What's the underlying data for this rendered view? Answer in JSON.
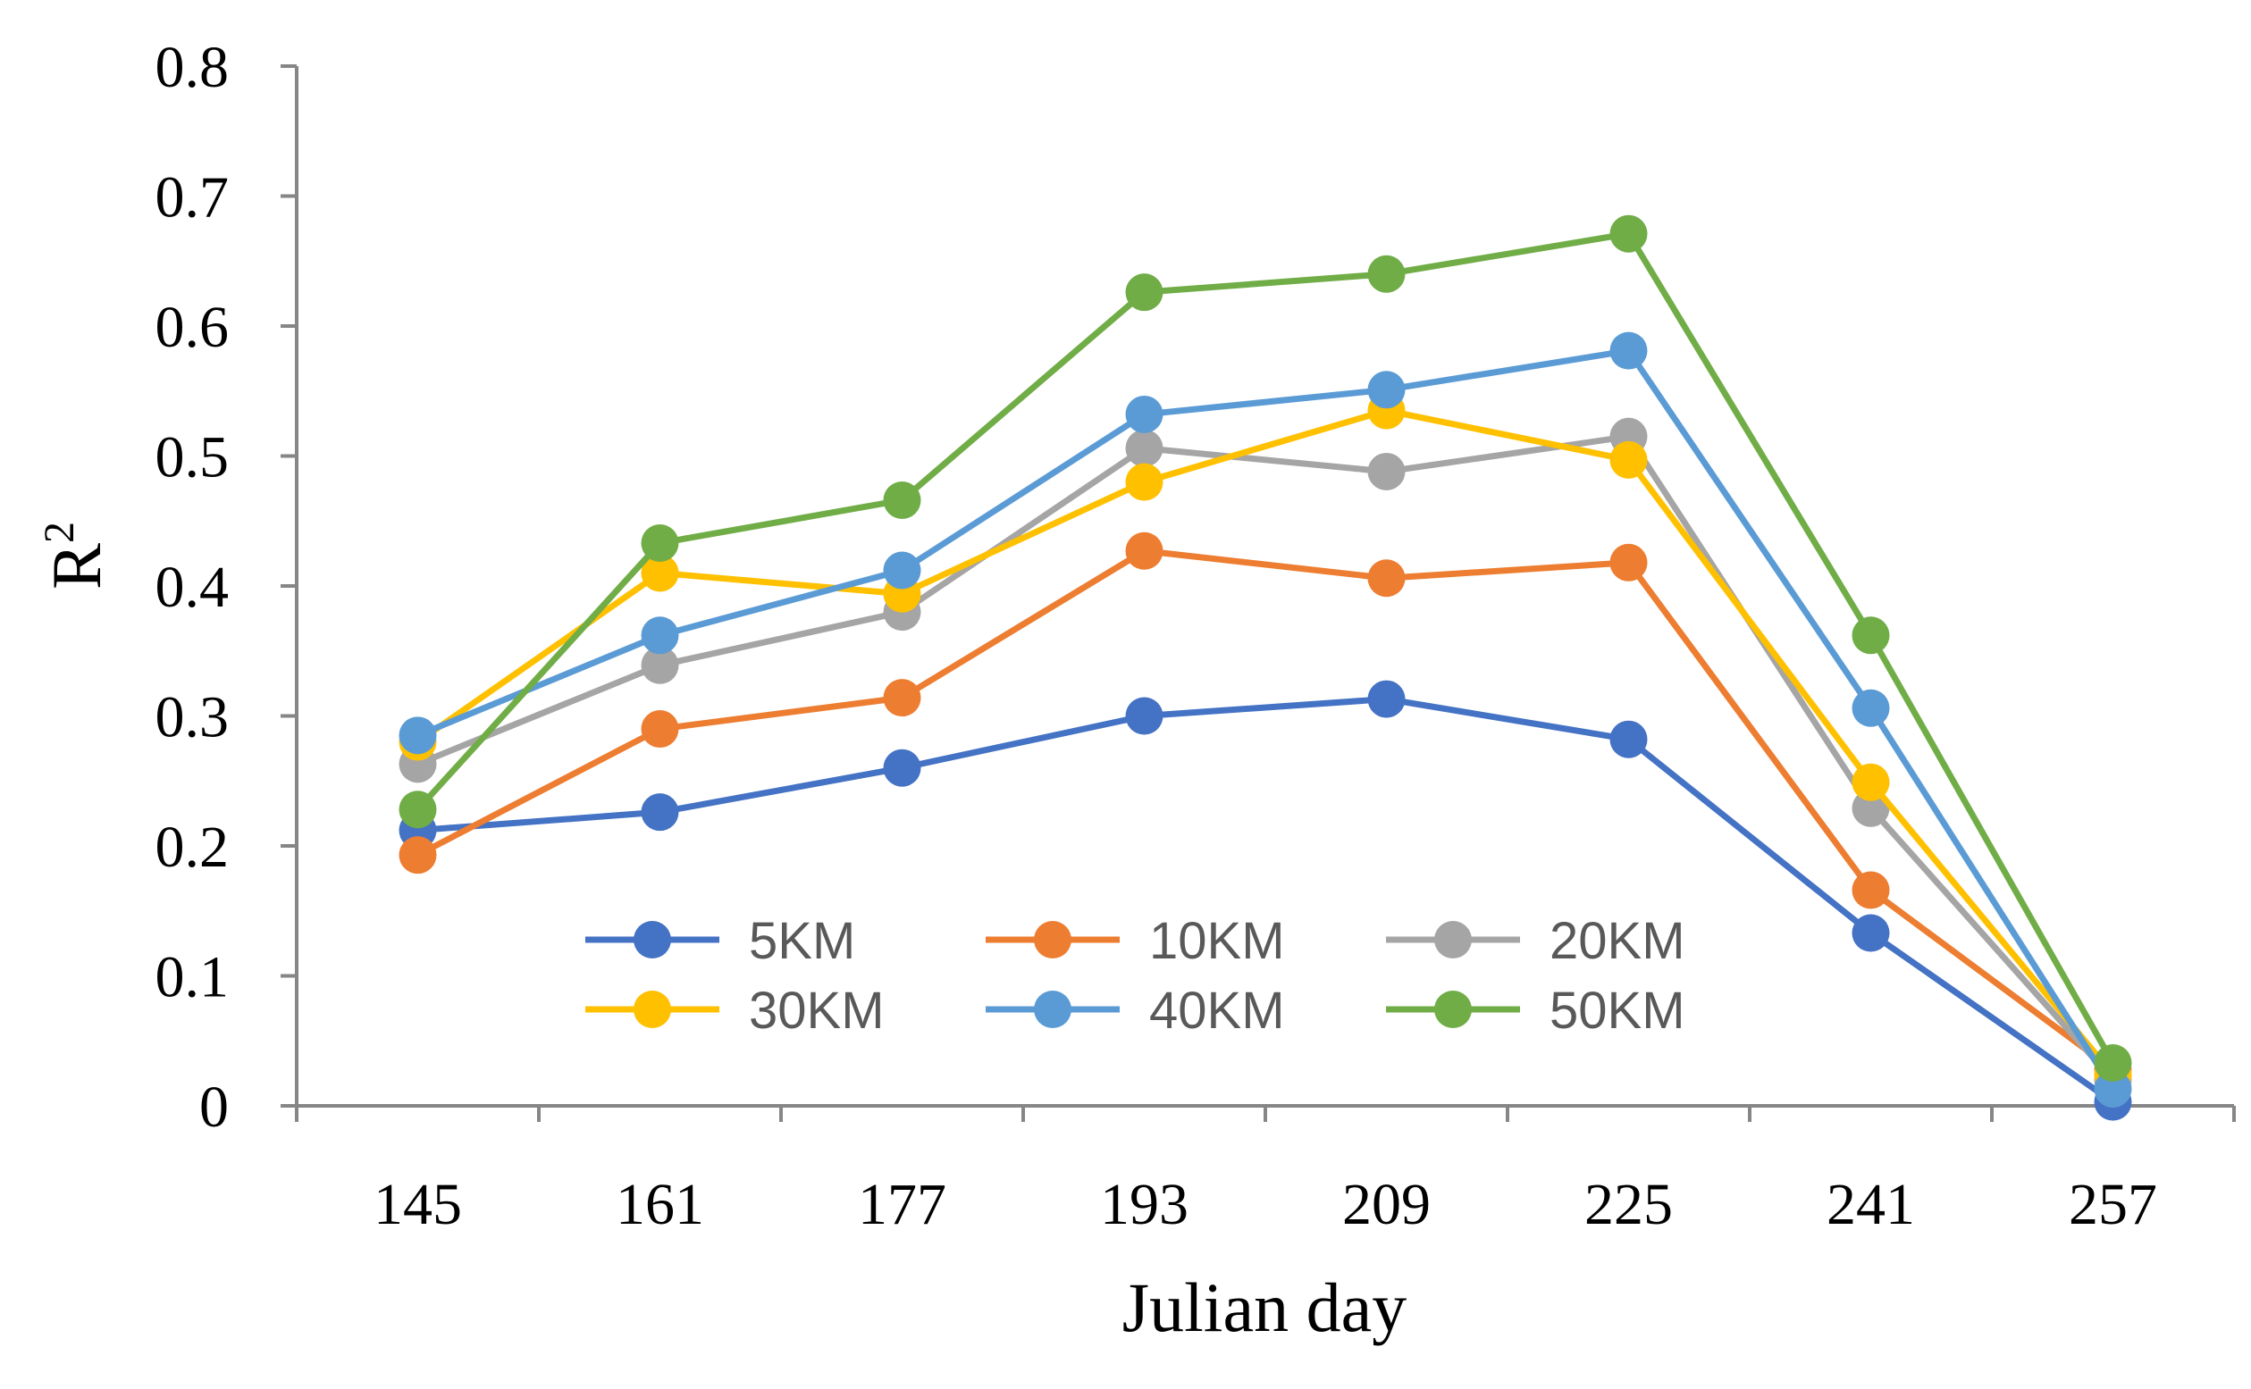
{
  "chart_data": {
    "type": "line",
    "title": "",
    "xlabel": "Julian day",
    "ylabel": "R",
    "ylabel_superscript": "2",
    "categories": [
      "145",
      "161",
      "177",
      "193",
      "209",
      "225",
      "241",
      "257"
    ],
    "ylim": [
      0,
      0.8
    ],
    "yticks": [
      "0",
      "0.1",
      "0.2",
      "0.3",
      "0.4",
      "0.5",
      "0.6",
      "0.7",
      "0.8"
    ],
    "grid": false,
    "legend_position": "lower-center",
    "series": [
      {
        "name": "5KM",
        "color": "#4472C4",
        "values": [
          0.212,
          0.226,
          0.26,
          0.3,
          0.313,
          0.282,
          0.133,
          0.003
        ]
      },
      {
        "name": "10KM",
        "color": "#ED7D31",
        "values": [
          0.193,
          0.29,
          0.314,
          0.427,
          0.406,
          0.418,
          0.166,
          0.028
        ]
      },
      {
        "name": "20KM",
        "color": "#A5A5A5",
        "values": [
          0.263,
          0.339,
          0.38,
          0.506,
          0.488,
          0.515,
          0.229,
          0.02
        ]
      },
      {
        "name": "30KM",
        "color": "#FFC000",
        "values": [
          0.28,
          0.41,
          0.394,
          0.48,
          0.535,
          0.497,
          0.249,
          0.024
        ]
      },
      {
        "name": "40KM",
        "color": "#5B9BD5",
        "values": [
          0.285,
          0.362,
          0.412,
          0.532,
          0.551,
          0.581,
          0.306,
          0.013
        ]
      },
      {
        "name": "50KM",
        "color": "#70AD47",
        "values": [
          0.228,
          0.433,
          0.466,
          0.626,
          0.64,
          0.671,
          0.362,
          0.033
        ]
      }
    ]
  }
}
